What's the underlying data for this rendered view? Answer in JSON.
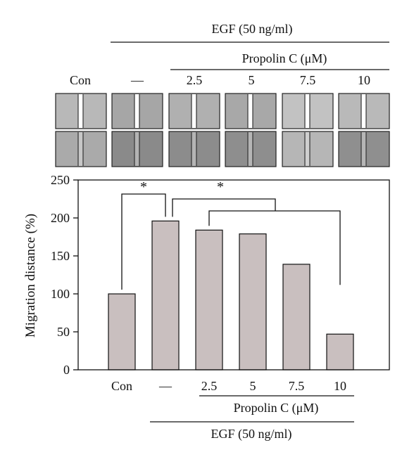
{
  "header": {
    "egf_label": "EGF (50 ng/ml)",
    "propolin_label": "Propolin C (μM)",
    "columns": [
      "Con",
      "—",
      "2.5",
      "5",
      "7.5",
      "10"
    ]
  },
  "micrographs": {
    "rows": 2,
    "tones": [
      [
        "#b8b8b8",
        "#a6a6a6",
        "#b0b0b0",
        "#a8a8a8",
        "#c2c2c2",
        "#b9b9b9"
      ],
      [
        "#aaaaaa",
        "#8a8a8a",
        "#8c8c8c",
        "#8e8e8e",
        "#b6b6b6",
        "#8f8f8f"
      ]
    ],
    "scratch_color": "#ffffff"
  },
  "chart_data": {
    "type": "bar",
    "categories": [
      "Con",
      "—",
      "2.5",
      "5",
      "7.5",
      "10"
    ],
    "values": [
      100,
      196,
      184,
      179,
      139,
      47
    ],
    "ylabel": "Migration distance (%)",
    "ylim": [
      0,
      250
    ],
    "yticks": [
      0,
      50,
      100,
      150,
      200,
      250
    ],
    "bar_color": "#c9bfbf",
    "significance": [
      {
        "label": "*",
        "from": [
          0
        ],
        "to": [
          1
        ]
      },
      {
        "label": "*",
        "from": [
          1
        ],
        "to": [
          2,
          3,
          4,
          5
        ]
      }
    ],
    "xaxis_groups": {
      "propolin_label": "Propolin C (μM)",
      "egf_label": "EGF (50 ng/ml)"
    }
  }
}
